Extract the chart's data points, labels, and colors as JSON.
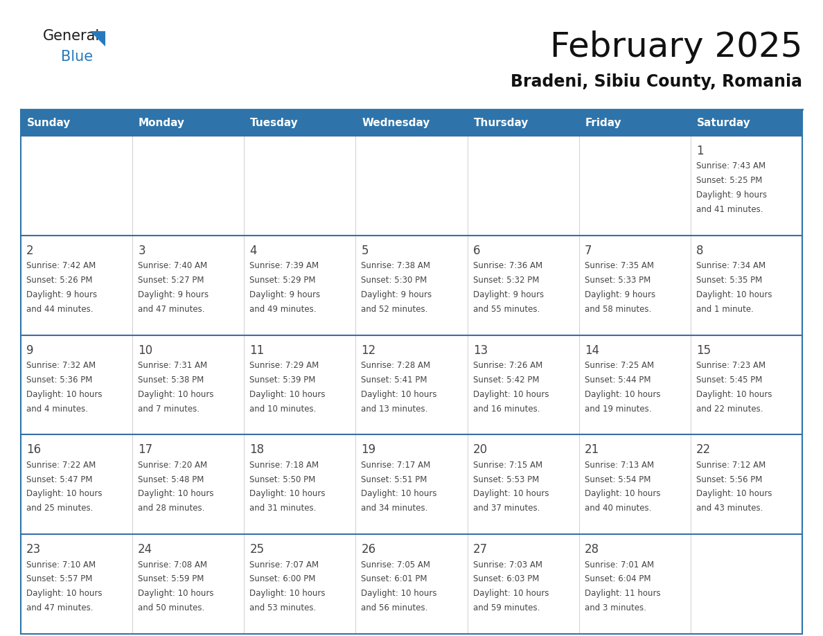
{
  "title": "February 2025",
  "subtitle": "Bradeni, Sibiu County, Romania",
  "header_color": "#2E74AA",
  "header_text_color": "#FFFFFF",
  "cell_bg_white": "#FFFFFF",
  "cell_bg_gray": "#F2F2F2",
  "border_color": "#2E74AA",
  "separator_color": "#3A6EA5",
  "text_color": "#444444",
  "days_of_week": [
    "Sunday",
    "Monday",
    "Tuesday",
    "Wednesday",
    "Thursday",
    "Friday",
    "Saturday"
  ],
  "calendar_data": [
    [
      null,
      null,
      null,
      null,
      null,
      null,
      {
        "day": "1",
        "sunrise": "7:43 AM",
        "sunset": "5:25 PM",
        "daylight1": "9 hours",
        "daylight2": "and 41 minutes."
      }
    ],
    [
      {
        "day": "2",
        "sunrise": "7:42 AM",
        "sunset": "5:26 PM",
        "daylight1": "9 hours",
        "daylight2": "and 44 minutes."
      },
      {
        "day": "3",
        "sunrise": "7:40 AM",
        "sunset": "5:27 PM",
        "daylight1": "9 hours",
        "daylight2": "and 47 minutes."
      },
      {
        "day": "4",
        "sunrise": "7:39 AM",
        "sunset": "5:29 PM",
        "daylight1": "9 hours",
        "daylight2": "and 49 minutes."
      },
      {
        "day": "5",
        "sunrise": "7:38 AM",
        "sunset": "5:30 PM",
        "daylight1": "9 hours",
        "daylight2": "and 52 minutes."
      },
      {
        "day": "6",
        "sunrise": "7:36 AM",
        "sunset": "5:32 PM",
        "daylight1": "9 hours",
        "daylight2": "and 55 minutes."
      },
      {
        "day": "7",
        "sunrise": "7:35 AM",
        "sunset": "5:33 PM",
        "daylight1": "9 hours",
        "daylight2": "and 58 minutes."
      },
      {
        "day": "8",
        "sunrise": "7:34 AM",
        "sunset": "5:35 PM",
        "daylight1": "10 hours",
        "daylight2": "and 1 minute."
      }
    ],
    [
      {
        "day": "9",
        "sunrise": "7:32 AM",
        "sunset": "5:36 PM",
        "daylight1": "10 hours",
        "daylight2": "and 4 minutes."
      },
      {
        "day": "10",
        "sunrise": "7:31 AM",
        "sunset": "5:38 PM",
        "daylight1": "10 hours",
        "daylight2": "and 7 minutes."
      },
      {
        "day": "11",
        "sunrise": "7:29 AM",
        "sunset": "5:39 PM",
        "daylight1": "10 hours",
        "daylight2": "and 10 minutes."
      },
      {
        "day": "12",
        "sunrise": "7:28 AM",
        "sunset": "5:41 PM",
        "daylight1": "10 hours",
        "daylight2": "and 13 minutes."
      },
      {
        "day": "13",
        "sunrise": "7:26 AM",
        "sunset": "5:42 PM",
        "daylight1": "10 hours",
        "daylight2": "and 16 minutes."
      },
      {
        "day": "14",
        "sunrise": "7:25 AM",
        "sunset": "5:44 PM",
        "daylight1": "10 hours",
        "daylight2": "and 19 minutes."
      },
      {
        "day": "15",
        "sunrise": "7:23 AM",
        "sunset": "5:45 PM",
        "daylight1": "10 hours",
        "daylight2": "and 22 minutes."
      }
    ],
    [
      {
        "day": "16",
        "sunrise": "7:22 AM",
        "sunset": "5:47 PM",
        "daylight1": "10 hours",
        "daylight2": "and 25 minutes."
      },
      {
        "day": "17",
        "sunrise": "7:20 AM",
        "sunset": "5:48 PM",
        "daylight1": "10 hours",
        "daylight2": "and 28 minutes."
      },
      {
        "day": "18",
        "sunrise": "7:18 AM",
        "sunset": "5:50 PM",
        "daylight1": "10 hours",
        "daylight2": "and 31 minutes."
      },
      {
        "day": "19",
        "sunrise": "7:17 AM",
        "sunset": "5:51 PM",
        "daylight1": "10 hours",
        "daylight2": "and 34 minutes."
      },
      {
        "day": "20",
        "sunrise": "7:15 AM",
        "sunset": "5:53 PM",
        "daylight1": "10 hours",
        "daylight2": "and 37 minutes."
      },
      {
        "day": "21",
        "sunrise": "7:13 AM",
        "sunset": "5:54 PM",
        "daylight1": "10 hours",
        "daylight2": "and 40 minutes."
      },
      {
        "day": "22",
        "sunrise": "7:12 AM",
        "sunset": "5:56 PM",
        "daylight1": "10 hours",
        "daylight2": "and 43 minutes."
      }
    ],
    [
      {
        "day": "23",
        "sunrise": "7:10 AM",
        "sunset": "5:57 PM",
        "daylight1": "10 hours",
        "daylight2": "and 47 minutes."
      },
      {
        "day": "24",
        "sunrise": "7:08 AM",
        "sunset": "5:59 PM",
        "daylight1": "10 hours",
        "daylight2": "and 50 minutes."
      },
      {
        "day": "25",
        "sunrise": "7:07 AM",
        "sunset": "6:00 PM",
        "daylight1": "10 hours",
        "daylight2": "and 53 minutes."
      },
      {
        "day": "26",
        "sunrise": "7:05 AM",
        "sunset": "6:01 PM",
        "daylight1": "10 hours",
        "daylight2": "and 56 minutes."
      },
      {
        "day": "27",
        "sunrise": "7:03 AM",
        "sunset": "6:03 PM",
        "daylight1": "10 hours",
        "daylight2": "and 59 minutes."
      },
      {
        "day": "28",
        "sunrise": "7:01 AM",
        "sunset": "6:04 PM",
        "daylight1": "11 hours",
        "daylight2": "and 3 minutes."
      },
      null
    ]
  ],
  "logo_color_general": "#1a1a1a",
  "logo_color_blue": "#2779BD",
  "title_fontsize": 36,
  "subtitle_fontsize": 17,
  "day_num_fontsize": 12,
  "cell_text_fontsize": 8.5,
  "header_fontsize": 11
}
